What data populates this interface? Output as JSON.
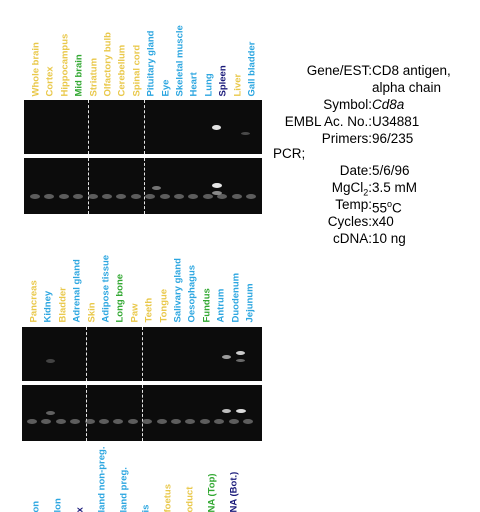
{
  "colors": {
    "yellow": "#e9c84a",
    "lightblue": "#2ca6e0",
    "green": "#32a832",
    "navy": "#1a1a7a",
    "gel": "#0c0c0c",
    "band": "#9a9a9a"
  },
  "panel1": {
    "lanes": [
      {
        "label": "Whole brain",
        "color": "yellow"
      },
      {
        "label": "Cortex",
        "color": "yellow"
      },
      {
        "label": "Hippocampus",
        "color": "yellow"
      },
      {
        "label": "Mid brain",
        "color": "green"
      },
      {
        "label": "Striatum",
        "color": "yellow"
      },
      {
        "label": "Olfactory bulb",
        "color": "yellow"
      },
      {
        "label": "Cerebellum",
        "color": "yellow"
      },
      {
        "label": "Spinal cord",
        "color": "yellow"
      },
      {
        "label": "Pituitary gland",
        "color": "lightblue"
      },
      {
        "label": "Eye",
        "color": "lightblue"
      },
      {
        "label": "Skeletal muscle",
        "color": "lightblue"
      },
      {
        "label": "Heart",
        "color": "lightblue"
      },
      {
        "label": "Lung",
        "color": "lightblue"
      },
      {
        "label": "Spleen",
        "color": "navy"
      },
      {
        "label": "Liver",
        "color": "yellow"
      },
      {
        "label": "Gall bladder",
        "color": "lightblue"
      }
    ]
  },
  "panel2": {
    "lanes": [
      {
        "label": "Pancreas",
        "color": "yellow"
      },
      {
        "label": "Kidney",
        "color": "lightblue"
      },
      {
        "label": "Bladder",
        "color": "yellow"
      },
      {
        "label": "Adrenal gland",
        "color": "lightblue"
      },
      {
        "label": "Skin",
        "color": "yellow"
      },
      {
        "label": "Adipose tissue",
        "color": "lightblue"
      },
      {
        "label": "Long bone",
        "color": "green"
      },
      {
        "label": "Paw",
        "color": "yellow"
      },
      {
        "label": "Teeth",
        "color": "yellow"
      },
      {
        "label": "Tongue",
        "color": "yellow"
      },
      {
        "label": "Salivary gland",
        "color": "lightblue"
      },
      {
        "label": "Oesophagus",
        "color": "lightblue"
      },
      {
        "label": "Fundus",
        "color": "green"
      },
      {
        "label": "Antrum",
        "color": "lightblue"
      },
      {
        "label": "Duodenum",
        "color": "lightblue"
      },
      {
        "label": "Jejunum",
        "color": "lightblue"
      }
    ]
  },
  "panel3": {
    "lanes": [
      {
        "label": "on",
        "color": "lightblue"
      },
      {
        "label": "lon",
        "color": "lightblue"
      },
      {
        "label": "x",
        "color": "navy"
      },
      {
        "label": "land non-preg.",
        "color": "lightblue"
      },
      {
        "label": "land preg.",
        "color": "lightblue"
      },
      {
        "label": "is",
        "color": "lightblue"
      },
      {
        "label": "foetus",
        "color": "yellow"
      },
      {
        "label": "oduct",
        "color": "yellow"
      },
      {
        "label": "NA (Top)",
        "color": "green"
      },
      {
        "label": "NA (Bot.)",
        "color": "navy"
      }
    ]
  },
  "info": {
    "gene_key": "Gene/EST:",
    "gene_val_1": "CD8 antigen,",
    "gene_val_2": "alpha chain",
    "symbol_key": "Symbol:",
    "symbol_val": "Cd8a",
    "embl_key": "EMBL Ac. No.:",
    "embl_val": "U34881",
    "primers_key": "Primers:",
    "primers_val": "96/235",
    "pcr_key": "PCR;",
    "date_key": "Date:",
    "date_val": "5/6/96",
    "mgcl_key_a": "MgCl",
    "mgcl_key_sub": "2",
    "mgcl_key_b": ":",
    "mgcl_val": "3.5 mM",
    "temp_key": "Temp:",
    "temp_val_a": "55",
    "temp_val_sup": "o",
    "temp_val_b": "C",
    "cycles_key": "Cycles:",
    "cycles_val": "x40",
    "cdna_key": "cDNA:",
    "cdna_val": "10 ng"
  }
}
